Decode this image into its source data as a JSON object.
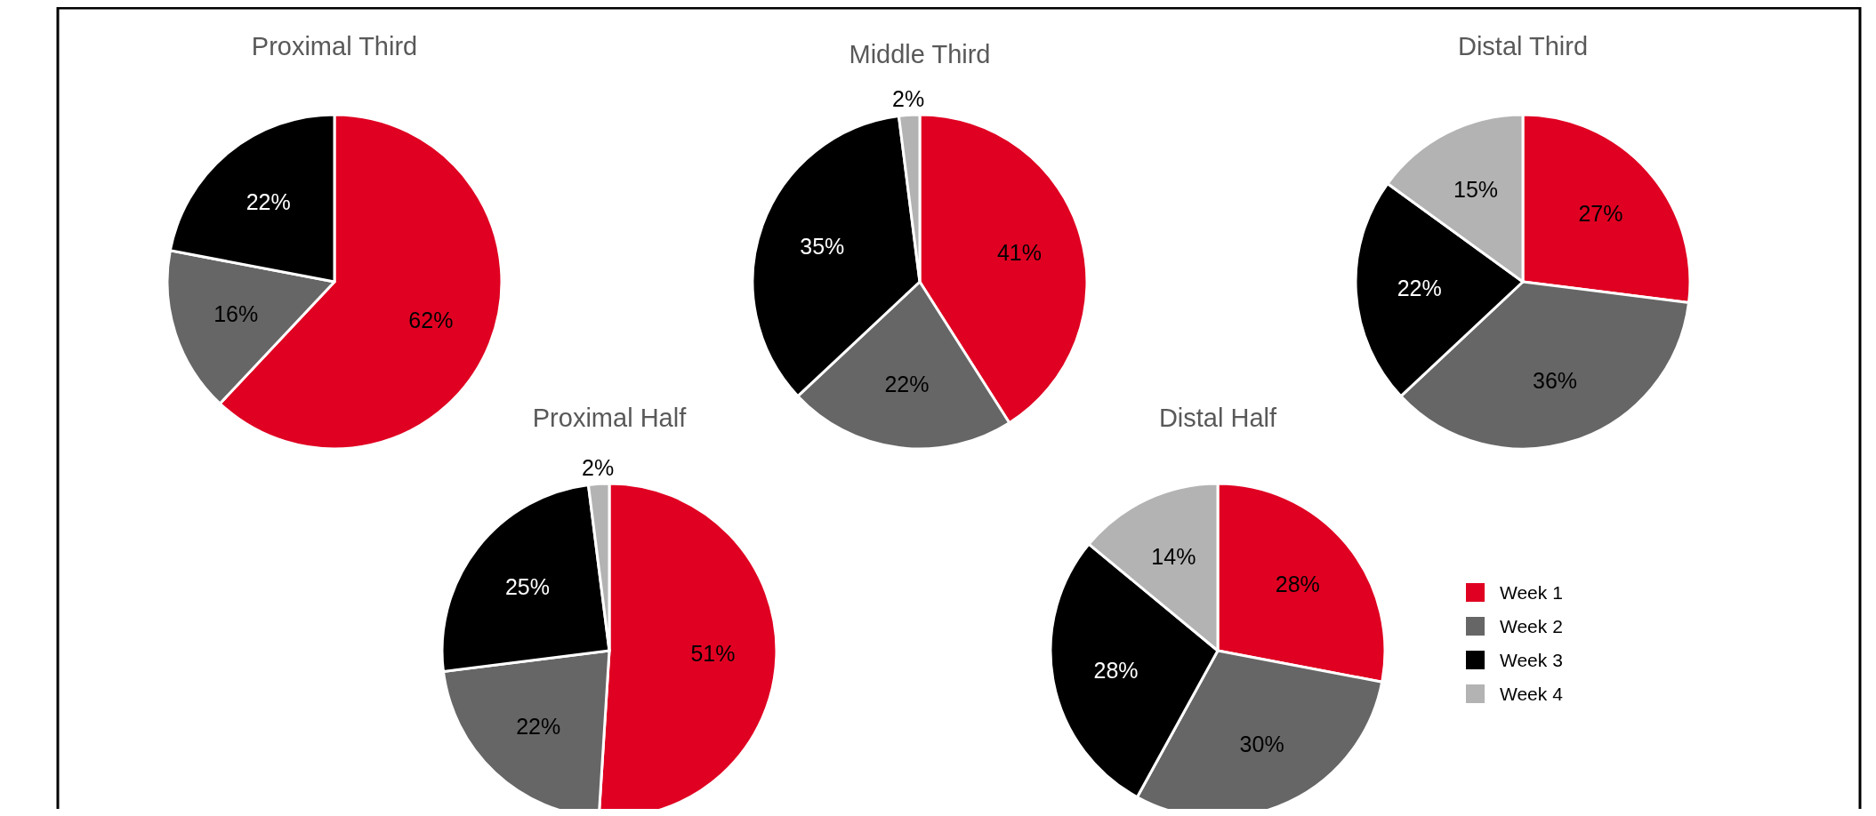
{
  "chart_data": [
    {
      "type": "pie",
      "title": "Proximal Third",
      "categories": [
        null,
        null,
        null
      ],
      "values": [
        62,
        16,
        22
      ],
      "colors": [
        "#e00022",
        "#666666",
        "#000000"
      ],
      "value_labels": [
        "62%",
        "16%",
        "22%"
      ]
    },
    {
      "type": "pie",
      "title": "Middle Third",
      "categories": [
        null,
        null,
        null,
        null
      ],
      "values": [
        41,
        22,
        35,
        2
      ],
      "colors": [
        "#e00022",
        "#666666",
        "#000000",
        "#b3b3b3"
      ],
      "value_labels": [
        "41%",
        "22%",
        "35%",
        "2%"
      ]
    },
    {
      "type": "pie",
      "title": "Distal Third",
      "categories": [
        null,
        null,
        null,
        null
      ],
      "values": [
        27,
        36,
        22,
        15
      ],
      "colors": [
        "#e00022",
        "#666666",
        "#000000",
        "#b3b3b3"
      ],
      "value_labels": [
        "27%",
        "36%",
        "22%",
        "15%"
      ]
    },
    {
      "type": "pie",
      "title": "Proximal Half",
      "categories": [
        null,
        null,
        null,
        null
      ],
      "values": [
        51,
        22,
        25,
        2
      ],
      "colors": [
        "#e00022",
        "#666666",
        "#000000",
        "#b3b3b3"
      ],
      "value_labels": [
        "51%",
        "22%",
        "25%",
        "2%"
      ]
    },
    {
      "type": "pie",
      "title": "Distal Half",
      "categories": [
        "Week 1",
        "Week 2",
        "Week 3",
        "Week 4"
      ],
      "values": [
        28,
        30,
        28,
        14
      ],
      "colors": [
        "#e00022",
        "#666666",
        "#000000",
        "#b3b3b3"
      ],
      "value_labels": [
        "28%",
        "30%",
        "28%",
        "14%"
      ],
      "legend": "right"
    }
  ]
}
